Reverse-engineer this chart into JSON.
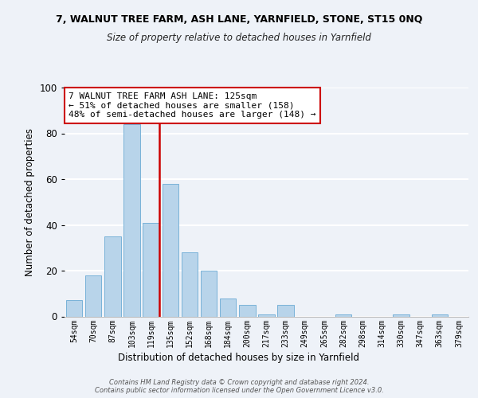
{
  "title": "7, WALNUT TREE FARM, ASH LANE, YARNFIELD, STONE, ST15 0NQ",
  "subtitle": "Size of property relative to detached houses in Yarnfield",
  "xlabel": "Distribution of detached houses by size in Yarnfield",
  "ylabel": "Number of detached properties",
  "bin_labels": [
    "54sqm",
    "70sqm",
    "87sqm",
    "103sqm",
    "119sqm",
    "135sqm",
    "152sqm",
    "168sqm",
    "184sqm",
    "200sqm",
    "217sqm",
    "233sqm",
    "249sqm",
    "265sqm",
    "282sqm",
    "298sqm",
    "314sqm",
    "330sqm",
    "347sqm",
    "363sqm",
    "379sqm"
  ],
  "bar_heights": [
    7,
    18,
    35,
    84,
    41,
    58,
    28,
    20,
    8,
    5,
    1,
    5,
    0,
    0,
    1,
    0,
    0,
    1,
    0,
    1,
    0
  ],
  "bar_color": "#b8d4ea",
  "bar_edge_color": "#6aaad4",
  "vline_color": "#cc0000",
  "annotation_line1": "7 WALNUT TREE FARM ASH LANE: 125sqm",
  "annotation_line2": "← 51% of detached houses are smaller (158)",
  "annotation_line3": "48% of semi-detached houses are larger (148) →",
  "annotation_box_color": "#ffffff",
  "annotation_box_edge": "#cc0000",
  "ylim": [
    0,
    100
  ],
  "yticks": [
    0,
    20,
    40,
    60,
    80,
    100
  ],
  "footer_text": "Contains HM Land Registry data © Crown copyright and database right 2024.\nContains public sector information licensed under the Open Government Licence v3.0.",
  "bg_color": "#eef2f8"
}
